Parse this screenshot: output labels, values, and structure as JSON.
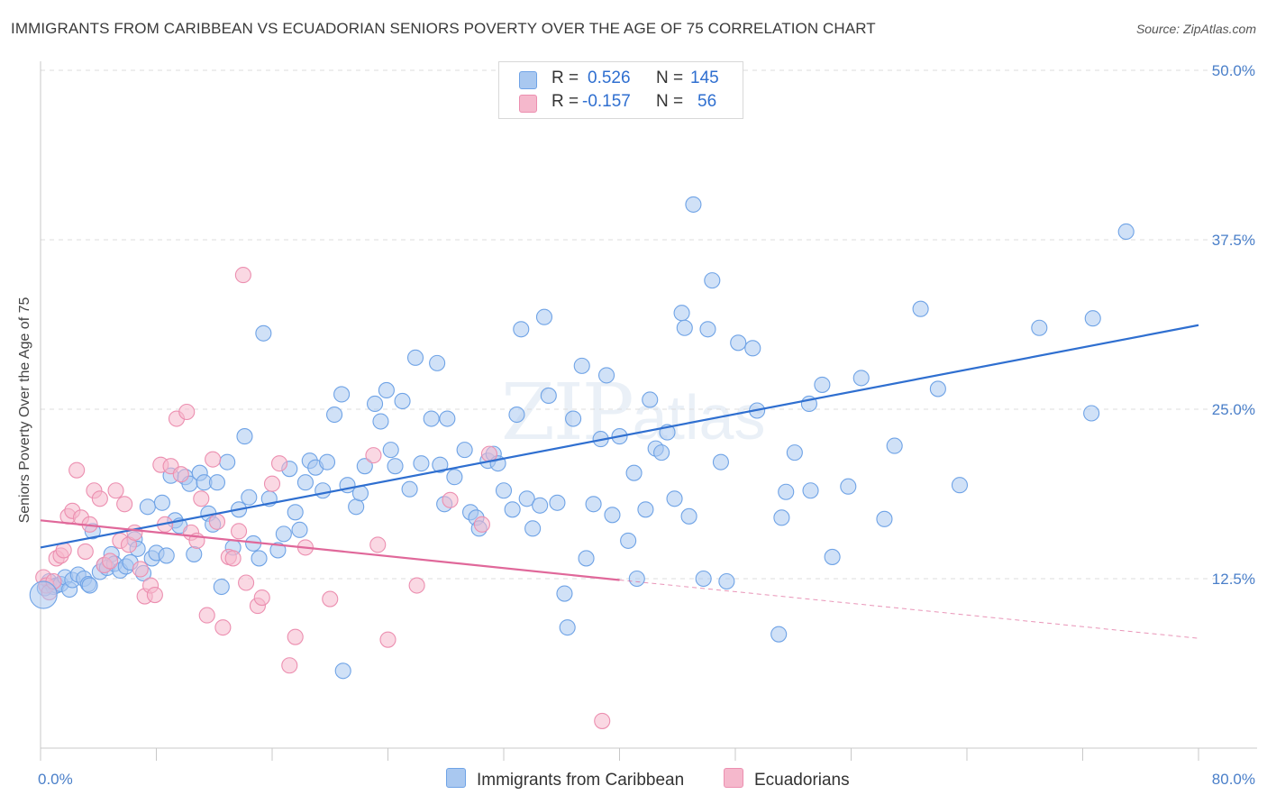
{
  "title": "IMMIGRANTS FROM CARIBBEAN VS ECUADORIAN SENIORS POVERTY OVER THE AGE OF 75 CORRELATION CHART",
  "source": "Source: ZipAtlas.com",
  "watermark": {
    "zip": "ZIP",
    "atlas": "atlas"
  },
  "legend_top": [
    {
      "r_label": "R =",
      "r_value": "0.526",
      "n_label": "N =",
      "n_value": "145",
      "color": "#a9c8f0"
    },
    {
      "r_label": "R =",
      "r_value": "-0.157",
      "n_label": "N =",
      "n_value": "56",
      "color": "#f5b8cc"
    }
  ],
  "legend_bottom": [
    {
      "label": "Immigrants from Caribbean",
      "color": "#a9c8f0"
    },
    {
      "label": "Ecuadorians",
      "color": "#f5b8cc"
    }
  ],
  "chart_data": {
    "type": "scatter",
    "title": "IMMIGRANTS FROM CARIBBEAN VS ECUADORIAN SENIORS POVERTY OVER THE AGE OF 75 CORRELATION CHART",
    "xlabel": "",
    "ylabel": "Seniors Poverty Over the Age of 75",
    "xlim": [
      0,
      80
    ],
    "ylim": [
      0,
      50
    ],
    "x_tick_labels": [
      "0.0%",
      "80.0%"
    ],
    "y_ticks": [
      12.5,
      25.0,
      37.5,
      50.0
    ],
    "y_tick_labels": [
      "12.5%",
      "25.0%",
      "37.5%",
      "50.0%"
    ],
    "grid": true,
    "legend_position": "top-center",
    "series": [
      {
        "name": "Immigrants from Caribbean",
        "color": "#6fa3e6",
        "fill": "#a9c8f0",
        "trend": {
          "x": [
            0,
            80
          ],
          "y": [
            14.8,
            31.2
          ],
          "color": "#2f6fd0"
        },
        "points": [
          [
            0.3,
            11.8
          ],
          [
            0.6,
            12.3
          ],
          [
            0.9,
            11.9
          ],
          [
            1.1,
            12.0
          ],
          [
            1.4,
            12.1
          ],
          [
            1.7,
            12.6
          ],
          [
            2.0,
            11.7
          ],
          [
            2.2,
            12.4
          ],
          [
            2.6,
            12.8
          ],
          [
            3.0,
            12.5
          ],
          [
            3.3,
            12.1
          ],
          [
            3.6,
            16.0
          ],
          [
            3.4,
            12.0
          ],
          [
            4.1,
            13.0
          ],
          [
            4.4,
            13.5
          ],
          [
            4.6,
            13.3
          ],
          [
            4.9,
            14.3
          ],
          [
            5.1,
            13.6
          ],
          [
            5.5,
            13.1
          ],
          [
            5.9,
            13.4
          ],
          [
            6.2,
            13.7
          ],
          [
            6.5,
            15.4
          ],
          [
            6.7,
            14.7
          ],
          [
            7.1,
            12.9
          ],
          [
            7.4,
            17.8
          ],
          [
            7.7,
            14.0
          ],
          [
            8.0,
            14.4
          ],
          [
            8.4,
            18.1
          ],
          [
            8.7,
            14.2
          ],
          [
            9.0,
            20.1
          ],
          [
            9.3,
            16.8
          ],
          [
            9.6,
            16.4
          ],
          [
            10.0,
            20.0
          ],
          [
            10.3,
            19.5
          ],
          [
            10.6,
            14.3
          ],
          [
            11.0,
            20.3
          ],
          [
            11.3,
            19.6
          ],
          [
            11.6,
            17.3
          ],
          [
            11.9,
            16.5
          ],
          [
            12.2,
            19.6
          ],
          [
            12.5,
            11.9
          ],
          [
            12.9,
            21.1
          ],
          [
            13.3,
            14.8
          ],
          [
            13.7,
            17.6
          ],
          [
            14.1,
            23.0
          ],
          [
            14.4,
            18.5
          ],
          [
            14.7,
            15.1
          ],
          [
            15.1,
            14.0
          ],
          [
            15.4,
            30.6
          ],
          [
            15.8,
            18.4
          ],
          [
            16.4,
            14.6
          ],
          [
            16.8,
            15.8
          ],
          [
            17.2,
            20.6
          ],
          [
            17.6,
            17.4
          ],
          [
            17.9,
            16.1
          ],
          [
            18.3,
            19.6
          ],
          [
            18.6,
            21.2
          ],
          [
            19.0,
            20.7
          ],
          [
            19.5,
            19.0
          ],
          [
            19.8,
            21.1
          ],
          [
            20.3,
            24.6
          ],
          [
            20.8,
            26.1
          ],
          [
            21.2,
            19.4
          ],
          [
            21.8,
            17.8
          ],
          [
            22.1,
            18.8
          ],
          [
            22.4,
            20.8
          ],
          [
            23.1,
            25.4
          ],
          [
            23.5,
            24.1
          ],
          [
            23.9,
            26.4
          ],
          [
            24.2,
            22.0
          ],
          [
            24.5,
            20.8
          ],
          [
            25.0,
            25.6
          ],
          [
            25.5,
            19.1
          ],
          [
            25.9,
            28.8
          ],
          [
            26.3,
            21.0
          ],
          [
            27.0,
            24.3
          ],
          [
            27.4,
            28.4
          ],
          [
            27.6,
            20.9
          ],
          [
            27.9,
            18.0
          ],
          [
            28.1,
            24.3
          ],
          [
            28.6,
            20.0
          ],
          [
            29.3,
            22.0
          ],
          [
            29.7,
            17.4
          ],
          [
            30.1,
            17.0
          ],
          [
            30.3,
            16.2
          ],
          [
            30.9,
            21.2
          ],
          [
            31.3,
            21.7
          ],
          [
            31.6,
            21.0
          ],
          [
            32.0,
            19.0
          ],
          [
            32.6,
            17.6
          ],
          [
            32.9,
            24.6
          ],
          [
            33.2,
            30.9
          ],
          [
            33.6,
            18.4
          ],
          [
            34.0,
            16.2
          ],
          [
            34.5,
            17.9
          ],
          [
            34.8,
            31.8
          ],
          [
            35.1,
            26.0
          ],
          [
            35.7,
            18.1
          ],
          [
            36.2,
            11.4
          ],
          [
            36.4,
            8.9
          ],
          [
            36.8,
            24.3
          ],
          [
            37.4,
            28.2
          ],
          [
            37.7,
            14.0
          ],
          [
            38.2,
            18.0
          ],
          [
            38.7,
            22.8
          ],
          [
            39.1,
            27.5
          ],
          [
            39.5,
            17.2
          ],
          [
            40.0,
            23.0
          ],
          [
            40.6,
            15.3
          ],
          [
            41.0,
            20.3
          ],
          [
            41.2,
            12.5
          ],
          [
            41.8,
            17.6
          ],
          [
            42.1,
            25.7
          ],
          [
            42.5,
            22.1
          ],
          [
            42.9,
            21.8
          ],
          [
            43.3,
            23.3
          ],
          [
            43.8,
            18.4
          ],
          [
            44.3,
            32.1
          ],
          [
            44.5,
            31.0
          ],
          [
            44.8,
            17.1
          ],
          [
            45.1,
            40.1
          ],
          [
            45.8,
            12.5
          ],
          [
            46.1,
            30.9
          ],
          [
            46.4,
            34.5
          ],
          [
            47.0,
            21.1
          ],
          [
            47.4,
            12.3
          ],
          [
            48.2,
            29.9
          ],
          [
            49.2,
            29.5
          ],
          [
            49.5,
            24.9
          ],
          [
            51.0,
            8.4
          ],
          [
            51.2,
            17.0
          ],
          [
            51.5,
            18.9
          ],
          [
            52.1,
            21.8
          ],
          [
            53.1,
            25.4
          ],
          [
            53.2,
            19.0
          ],
          [
            54.0,
            26.8
          ],
          [
            54.7,
            14.1
          ],
          [
            55.8,
            19.3
          ],
          [
            56.7,
            27.3
          ],
          [
            58.3,
            16.9
          ],
          [
            59.0,
            22.3
          ],
          [
            60.8,
            32.4
          ],
          [
            62.0,
            26.5
          ],
          [
            63.5,
            19.4
          ],
          [
            69.0,
            31.0
          ],
          [
            72.6,
            24.7
          ],
          [
            72.7,
            31.7
          ],
          [
            75.0,
            38.1
          ],
          [
            20.9,
            5.7
          ]
        ]
      },
      {
        "name": "Ecuadorians",
        "color": "#ec8fb0",
        "fill": "#f5b8cc",
        "trend": {
          "x": [
            0,
            40
          ],
          "y": [
            16.8,
            12.4
          ],
          "color": "#e0689a"
        },
        "trend_extension": {
          "x": [
            40,
            80
          ],
          "y": [
            12.4,
            8.1
          ]
        },
        "points": [
          [
            0.2,
            12.6
          ],
          [
            0.4,
            12.0
          ],
          [
            0.6,
            11.5
          ],
          [
            0.9,
            12.3
          ],
          [
            1.1,
            14.0
          ],
          [
            1.4,
            14.2
          ],
          [
            1.6,
            14.6
          ],
          [
            1.9,
            17.1
          ],
          [
            2.2,
            17.5
          ],
          [
            2.5,
            20.5
          ],
          [
            2.8,
            17.0
          ],
          [
            3.1,
            14.5
          ],
          [
            3.4,
            16.5
          ],
          [
            3.7,
            19.0
          ],
          [
            4.1,
            18.4
          ],
          [
            4.4,
            13.5
          ],
          [
            4.8,
            13.8
          ],
          [
            5.2,
            19.0
          ],
          [
            5.5,
            15.3
          ],
          [
            5.8,
            18.0
          ],
          [
            6.1,
            15.0
          ],
          [
            6.5,
            15.9
          ],
          [
            6.9,
            13.2
          ],
          [
            7.2,
            11.2
          ],
          [
            7.6,
            12.0
          ],
          [
            7.9,
            11.3
          ],
          [
            8.3,
            20.9
          ],
          [
            8.6,
            16.5
          ],
          [
            9.0,
            20.8
          ],
          [
            9.4,
            24.3
          ],
          [
            9.7,
            20.2
          ],
          [
            10.1,
            24.8
          ],
          [
            10.4,
            15.9
          ],
          [
            10.8,
            15.3
          ],
          [
            11.1,
            18.4
          ],
          [
            11.5,
            9.8
          ],
          [
            11.9,
            21.3
          ],
          [
            12.2,
            16.7
          ],
          [
            12.6,
            8.9
          ],
          [
            13.0,
            14.1
          ],
          [
            13.3,
            14.0
          ],
          [
            13.7,
            16.0
          ],
          [
            14.0,
            34.9
          ],
          [
            14.2,
            12.2
          ],
          [
            15.0,
            10.5
          ],
          [
            15.3,
            11.1
          ],
          [
            16.0,
            19.5
          ],
          [
            16.5,
            21.0
          ],
          [
            17.2,
            6.1
          ],
          [
            17.6,
            8.2
          ],
          [
            18.3,
            14.8
          ],
          [
            20.0,
            11.0
          ],
          [
            23.0,
            21.6
          ],
          [
            23.3,
            15.0
          ],
          [
            24.0,
            8.0
          ],
          [
            26.0,
            12.0
          ],
          [
            28.3,
            18.3
          ],
          [
            30.5,
            16.5
          ],
          [
            31.0,
            21.7
          ],
          [
            38.8,
            2.0
          ]
        ]
      }
    ]
  }
}
